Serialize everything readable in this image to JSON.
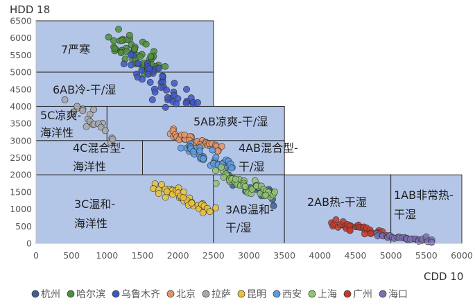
{
  "chart_data": {
    "type": "scatter",
    "ylabel": "HDD 18",
    "xlabel": "CDD 10",
    "xlim": [
      0,
      6000
    ],
    "ylim": [
      0,
      6500
    ],
    "x_ticks": [
      "0",
      "500",
      "1000",
      "1500",
      "2000",
      "2500",
      "3000",
      "3500",
      "4000",
      "4500",
      "5000",
      "5500",
      "6000"
    ],
    "y_ticks": [
      "0",
      "500",
      "1000",
      "1500",
      "2000",
      "2500",
      "3000",
      "3500",
      "4000",
      "4500",
      "5000",
      "5500",
      "6000",
      "6500"
    ],
    "grid": false,
    "legend_position": "bottom",
    "zone_fill": "#b4c6e7",
    "zones": [
      {
        "id": "z7",
        "lines": [
          "7严寒"
        ],
        "x0": 0,
        "x1": 2500,
        "y0": 5000,
        "y1": 6500
      },
      {
        "id": "z6ab",
        "lines": [
          "6AB冷-干/湿"
        ],
        "x0": 0,
        "x1": 2500,
        "y0": 4000,
        "y1": 5000
      },
      {
        "id": "z5c",
        "lines": [
          "5C凉爽-",
          "海洋性"
        ],
        "x0": 0,
        "x1": 1000,
        "y0": 3000,
        "y1": 4000
      },
      {
        "id": "z5ab",
        "lines": [
          "5AB凉爽-干/湿"
        ],
        "x0": 1000,
        "x1": 3500,
        "y0": 3000,
        "y1": 4000
      },
      {
        "id": "z4c",
        "lines": [
          "4C混合型-",
          "海洋性"
        ],
        "x0": 0,
        "x1": 1500,
        "y0": 2000,
        "y1": 3000
      },
      {
        "id": "z4ab",
        "lines": [
          "4AB混合型-",
          "干/湿"
        ],
        "x0": 1500,
        "x1": 3500,
        "y0": 2000,
        "y1": 3000
      },
      {
        "id": "z3c",
        "lines": [
          "3C温和-",
          "海洋性"
        ],
        "x0": 0,
        "x1": 2500,
        "y0": 0,
        "y1": 2000
      },
      {
        "id": "z3ab",
        "lines": [
          "3AB温和-",
          "干/湿"
        ],
        "x0": 2500,
        "x1": 3500,
        "y0": 0,
        "y1": 2000
      },
      {
        "id": "z2ab",
        "lines": [
          "2AB热-干湿"
        ],
        "x0": 3500,
        "x1": 5000,
        "y0": 0,
        "y1": 2000
      },
      {
        "id": "z1ab",
        "lines": [
          "1AB非常热-",
          "干湿"
        ],
        "x0": 5000,
        "x1": 6000,
        "y0": 0,
        "y1": 2000
      }
    ],
    "series": [
      {
        "name": "杭州",
        "color": "#41608f",
        "clusters": [
          {
            "x0": 2700,
            "y0": 1900,
            "x1": 3400,
            "y1": 1300,
            "n": 20,
            "jitter": 90
          }
        ]
      },
      {
        "name": "哈尔滨",
        "color": "#4e8f3a",
        "clusters": [
          {
            "x0": 1150,
            "y0": 6000,
            "x1": 1700,
            "y1": 5000,
            "n": 55,
            "jitter": 170
          }
        ]
      },
      {
        "name": "乌鲁木齐",
        "color": "#3d57c4",
        "clusters": [
          {
            "x0": 1350,
            "y0": 5300,
            "x1": 2150,
            "y1": 4000,
            "n": 50,
            "jitter": 190
          }
        ]
      },
      {
        "name": "北京",
        "color": "#e59467",
        "clusters": [
          {
            "x0": 1850,
            "y0": 3250,
            "x1": 2650,
            "y1": 2750,
            "n": 35,
            "jitter": 70
          }
        ]
      },
      {
        "name": "拉萨",
        "color": "#a7a7a7",
        "clusters": [
          {
            "x0": 520,
            "y0": 4150,
            "x1": 1050,
            "y1": 3050,
            "n": 20,
            "jitter": 110
          }
        ]
      },
      {
        "name": "昆明",
        "color": "#e9c23a",
        "clusters": [
          {
            "x0": 1700,
            "y0": 1700,
            "x1": 2450,
            "y1": 950,
            "n": 40,
            "jitter": 80
          }
        ]
      },
      {
        "name": "西安",
        "color": "#5b9be2",
        "clusters": [
          {
            "x0": 2050,
            "y0": 2850,
            "x1": 2800,
            "y1": 2200,
            "n": 40,
            "jitter": 90
          }
        ]
      },
      {
        "name": "上海",
        "color": "#8fc66e",
        "clusters": [
          {
            "x0": 2550,
            "y0": 2050,
            "x1": 3350,
            "y1": 1400,
            "n": 45,
            "jitter": 80
          }
        ]
      },
      {
        "name": "广州",
        "color": "#c0392b",
        "clusters": [
          {
            "x0": 4150,
            "y0": 600,
            "x1": 4850,
            "y1": 300,
            "n": 32,
            "jitter": 50
          }
        ]
      },
      {
        "name": "海口",
        "color": "#7d6fb1",
        "clusters": [
          {
            "x0": 4800,
            "y0": 250,
            "x1": 5600,
            "y1": 50,
            "n": 35,
            "jitter": 35
          }
        ]
      }
    ]
  }
}
